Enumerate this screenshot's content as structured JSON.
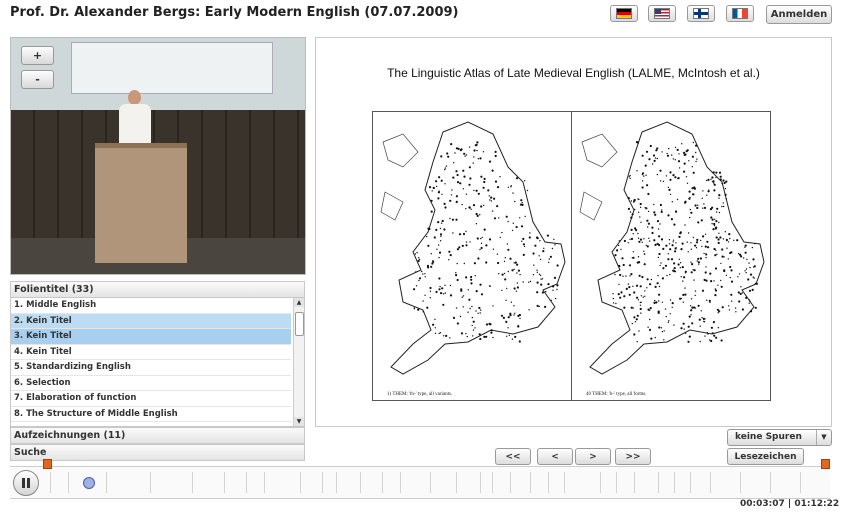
{
  "header": {
    "title": "Prof. Dr. Alexander Bergs: Early Modern English (07.07.2009)",
    "login_label": "Anmelden",
    "flags": [
      "flag-de-icon",
      "flag-us-icon",
      "flag-fi-icon",
      "flag-fr-icon"
    ]
  },
  "video": {
    "zoom_in_label": "+",
    "zoom_out_label": "-"
  },
  "slides_panel": {
    "header": "Folientitel (33)",
    "items": [
      {
        "label": "1. Middle English",
        "state": "normal"
      },
      {
        "label": "2. Kein Titel",
        "state": "hover"
      },
      {
        "label": "3. Kein Titel",
        "state": "selected"
      },
      {
        "label": "4. Kein Titel",
        "state": "normal"
      },
      {
        "label": "5. Standardizing English",
        "state": "normal"
      },
      {
        "label": "6. Selection",
        "state": "normal"
      },
      {
        "label": "7. Elaboration of function",
        "state": "normal"
      },
      {
        "label": "8. The Structure of Middle English",
        "state": "normal"
      }
    ],
    "recordings_header": "Aufzeichnungen (11)",
    "search_header": "Suche"
  },
  "slide": {
    "title": "The Linguistic Atlas of Late Medieval English (LALME, McIntosh et al.)",
    "map_left_caption": "1) THEM: 'th-' type, all variants.",
    "map_right_caption": "40 THEM: 'h-' type, all forms."
  },
  "navigation": {
    "first_label": "<<",
    "prev_label": "<",
    "next_label": ">",
    "last_label": ">>"
  },
  "tracks": {
    "label": "keine Spuren"
  },
  "bookmark_label": "Lesezeichen",
  "player": {
    "state": "playing",
    "current_time": "00:03:07",
    "separator": "|",
    "total_time": "01:12:22",
    "progress_fraction": 0.043
  },
  "colors": {
    "accent_selected": "#a7d0f0",
    "marker_orange": "#e2661e"
  }
}
